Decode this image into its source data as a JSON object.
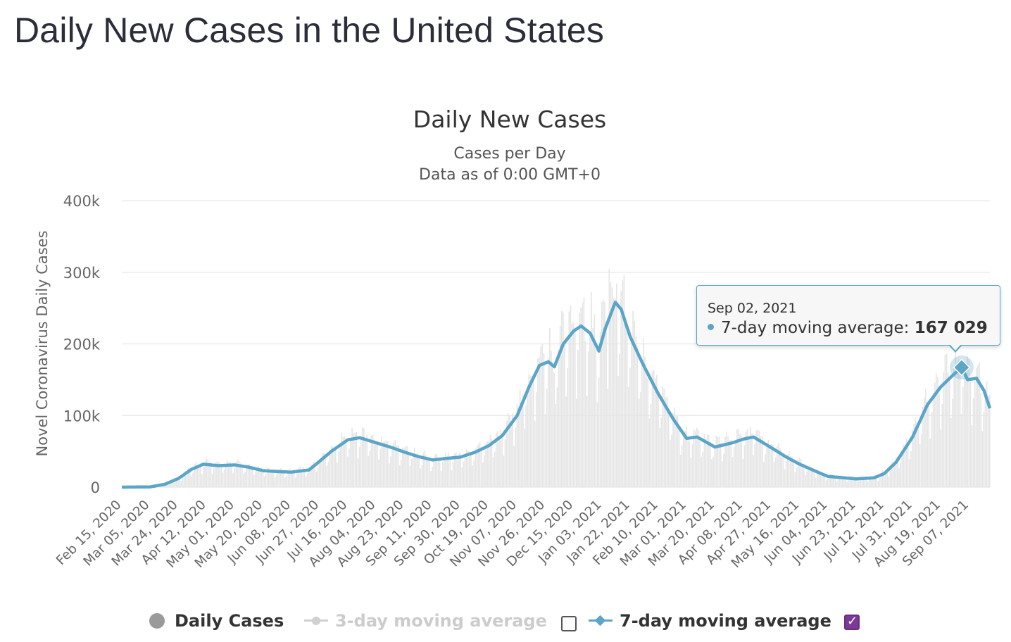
{
  "page": {
    "title": "Daily New Cases in the United States"
  },
  "chart_data": {
    "type": "bar",
    "title": "Daily New Cases",
    "subtitle": "Cases per Day",
    "subtitle2": "Data as of 0:00 GMT+0",
    "ylabel": "Novel Coronavirus Daily Cases",
    "xlabel": "",
    "ylim": [
      0,
      400000
    ],
    "y_ticks": [
      0,
      100000,
      200000,
      300000,
      400000
    ],
    "y_tick_labels": [
      "0",
      "100k",
      "200k",
      "300k",
      "400k"
    ],
    "x_start": "2020-02-15",
    "x_end": "2021-09-21",
    "x_tick_labels": [
      "Feb 15, 2020",
      "Mar 05, 2020",
      "Mar 24, 2020",
      "Apr 12, 2020",
      "May 01, 2020",
      "May 20, 2020",
      "Jun 08, 2020",
      "Jun 27, 2020",
      "Jul 16, 2020",
      "Aug 04, 2020",
      "Aug 23, 2020",
      "Sep 11, 2020",
      "Sep 30, 2020",
      "Oct 19, 2020",
      "Nov 07, 2020",
      "Nov 26, 2020",
      "Dec 15, 2020",
      "Jan 03, 2021",
      "Jan 22, 2021",
      "Feb 10, 2021",
      "Mar 01, 2021",
      "Mar 20, 2021",
      "Apr 08, 2021",
      "Apr 27, 2021",
      "May 16, 2021",
      "Jun 04, 2021",
      "Jun 23, 2021",
      "Jul 12, 2021",
      "Jul 31, 2021",
      "Aug 19, 2021",
      "Sep 07, 2021"
    ],
    "grid": true,
    "legend_position": "bottom-center",
    "series": [
      {
        "name": "Daily Cases",
        "kind": "bar",
        "color": "#e6e6e6",
        "note": "daily values scattered around the 7-day average, peak about 305000 on Jan 08, 2021"
      },
      {
        "name": "3-day moving average",
        "kind": "line",
        "color": "#cccccc",
        "visible": false
      },
      {
        "name": "7-day moving average",
        "kind": "line",
        "color": "#5aa5c8",
        "visible": true,
        "points": [
          [
            "2020-02-15",
            0
          ],
          [
            "2020-03-05",
            300
          ],
          [
            "2020-03-15",
            4000
          ],
          [
            "2020-03-24",
            12000
          ],
          [
            "2020-04-02",
            25000
          ],
          [
            "2020-04-10",
            32000
          ],
          [
            "2020-04-20",
            30000
          ],
          [
            "2020-05-01",
            31000
          ],
          [
            "2020-05-10",
            28000
          ],
          [
            "2020-05-20",
            23000
          ],
          [
            "2020-06-01",
            21500
          ],
          [
            "2020-06-08",
            21000
          ],
          [
            "2020-06-20",
            24000
          ],
          [
            "2020-06-27",
            36000
          ],
          [
            "2020-07-05",
            50000
          ],
          [
            "2020-07-16",
            66000
          ],
          [
            "2020-07-24",
            69000
          ],
          [
            "2020-08-04",
            62000
          ],
          [
            "2020-08-15",
            55000
          ],
          [
            "2020-08-23",
            49000
          ],
          [
            "2020-09-01",
            43000
          ],
          [
            "2020-09-11",
            38000
          ],
          [
            "2020-09-20",
            40000
          ],
          [
            "2020-09-30",
            42000
          ],
          [
            "2020-10-10",
            49000
          ],
          [
            "2020-10-19",
            58000
          ],
          [
            "2020-10-28",
            72000
          ],
          [
            "2020-11-07",
            100000
          ],
          [
            "2020-11-15",
            140000
          ],
          [
            "2020-11-22",
            170000
          ],
          [
            "2020-11-28",
            175000
          ],
          [
            "2020-12-02",
            168000
          ],
          [
            "2020-12-08",
            200000
          ],
          [
            "2020-12-15",
            218000
          ],
          [
            "2020-12-20",
            225000
          ],
          [
            "2020-12-26",
            215000
          ],
          [
            "2021-01-01",
            190000
          ],
          [
            "2021-01-05",
            220000
          ],
          [
            "2021-01-12",
            258000
          ],
          [
            "2021-01-16",
            248000
          ],
          [
            "2021-01-22",
            210000
          ],
          [
            "2021-01-31",
            170000
          ],
          [
            "2021-02-10",
            130000
          ],
          [
            "2021-02-20",
            95000
          ],
          [
            "2021-03-01",
            68000
          ],
          [
            "2021-03-08",
            70000
          ],
          [
            "2021-03-20",
            56000
          ],
          [
            "2021-04-01",
            62000
          ],
          [
            "2021-04-08",
            67000
          ],
          [
            "2021-04-15",
            70000
          ],
          [
            "2021-04-27",
            55000
          ],
          [
            "2021-05-07",
            42000
          ],
          [
            "2021-05-16",
            32000
          ],
          [
            "2021-05-27",
            22000
          ],
          [
            "2021-06-04",
            15000
          ],
          [
            "2021-06-15",
            13000
          ],
          [
            "2021-06-23",
            11500
          ],
          [
            "2021-07-05",
            13000
          ],
          [
            "2021-07-12",
            19000
          ],
          [
            "2021-07-20",
            35000
          ],
          [
            "2021-07-31",
            70000
          ],
          [
            "2021-08-10",
            115000
          ],
          [
            "2021-08-19",
            140000
          ],
          [
            "2021-08-28",
            158000
          ],
          [
            "2021-09-02",
            167029
          ],
          [
            "2021-09-06",
            150000
          ],
          [
            "2021-09-12",
            152000
          ],
          [
            "2021-09-17",
            135000
          ],
          [
            "2021-09-21",
            110000
          ]
        ]
      }
    ],
    "highlight": {
      "date": "2021-09-02",
      "value": 167029
    }
  },
  "tooltip": {
    "date": "Sep 02, 2021",
    "series_label": "7-day moving average:",
    "value": "167 029"
  },
  "legend": {
    "daily": "Daily Cases",
    "ma3": "3-day moving average",
    "ma7": "7-day moving average",
    "ma3_checked": false,
    "ma7_checked": true
  },
  "colors": {
    "accent": "#5aa5c8",
    "bar": "#e6e6e6",
    "checkbox": "#7c3a96"
  }
}
